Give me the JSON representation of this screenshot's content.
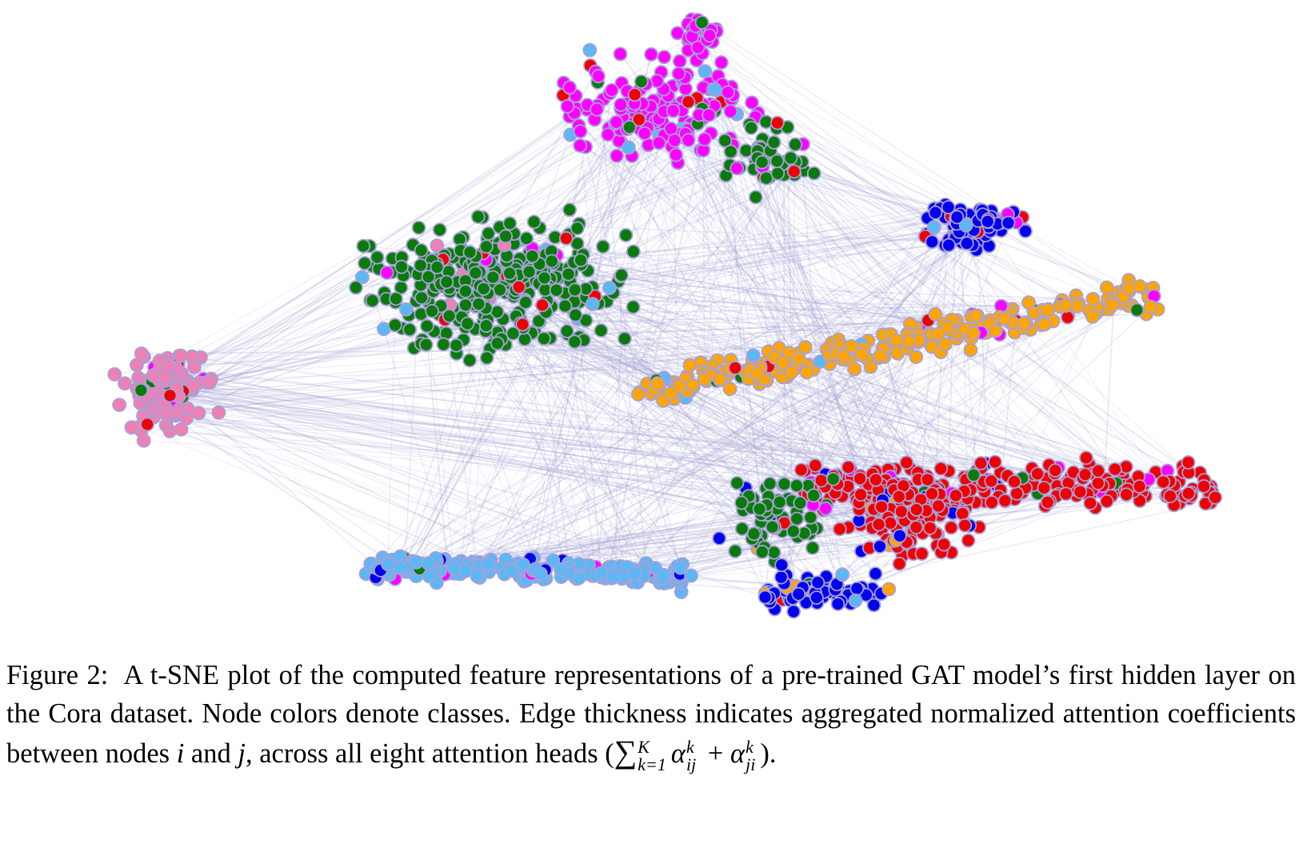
{
  "caption": {
    "label": "Figure 2:",
    "text_1": "A t-SNE plot of the computed feature representations of a pre-trained GAT model’s first hidden layer on the Cora dataset. Node colors denote classes. Edge thickness indicates aggregated normalized attention coefficients between nodes",
    "var_i": "i",
    "text_2": "and",
    "var_j": "j",
    "text_3": ", across all eight attention heads",
    "formula": {
      "open": "(",
      "sum": "∑",
      "upper": "K",
      "lower": "k=1",
      "alpha": "α",
      "sup": "k",
      "sub_1": "ij",
      "plus": "+",
      "sub_2": "ji",
      "close": ")."
    }
  }
}
